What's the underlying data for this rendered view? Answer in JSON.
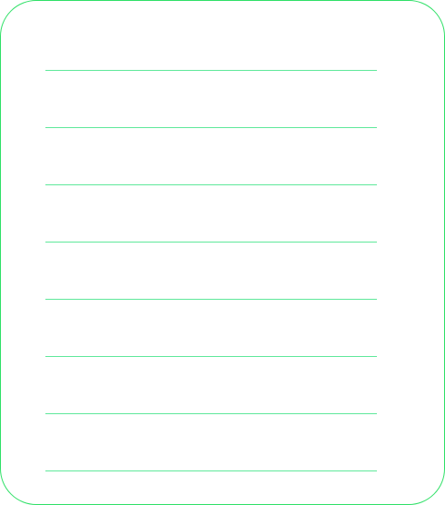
{
  "icon": "lined-paper-icon",
  "colors": {
    "border": "#2ee066",
    "rule": "#5ee89a",
    "background": "#ffffff"
  },
  "ruled_line_count": 8
}
